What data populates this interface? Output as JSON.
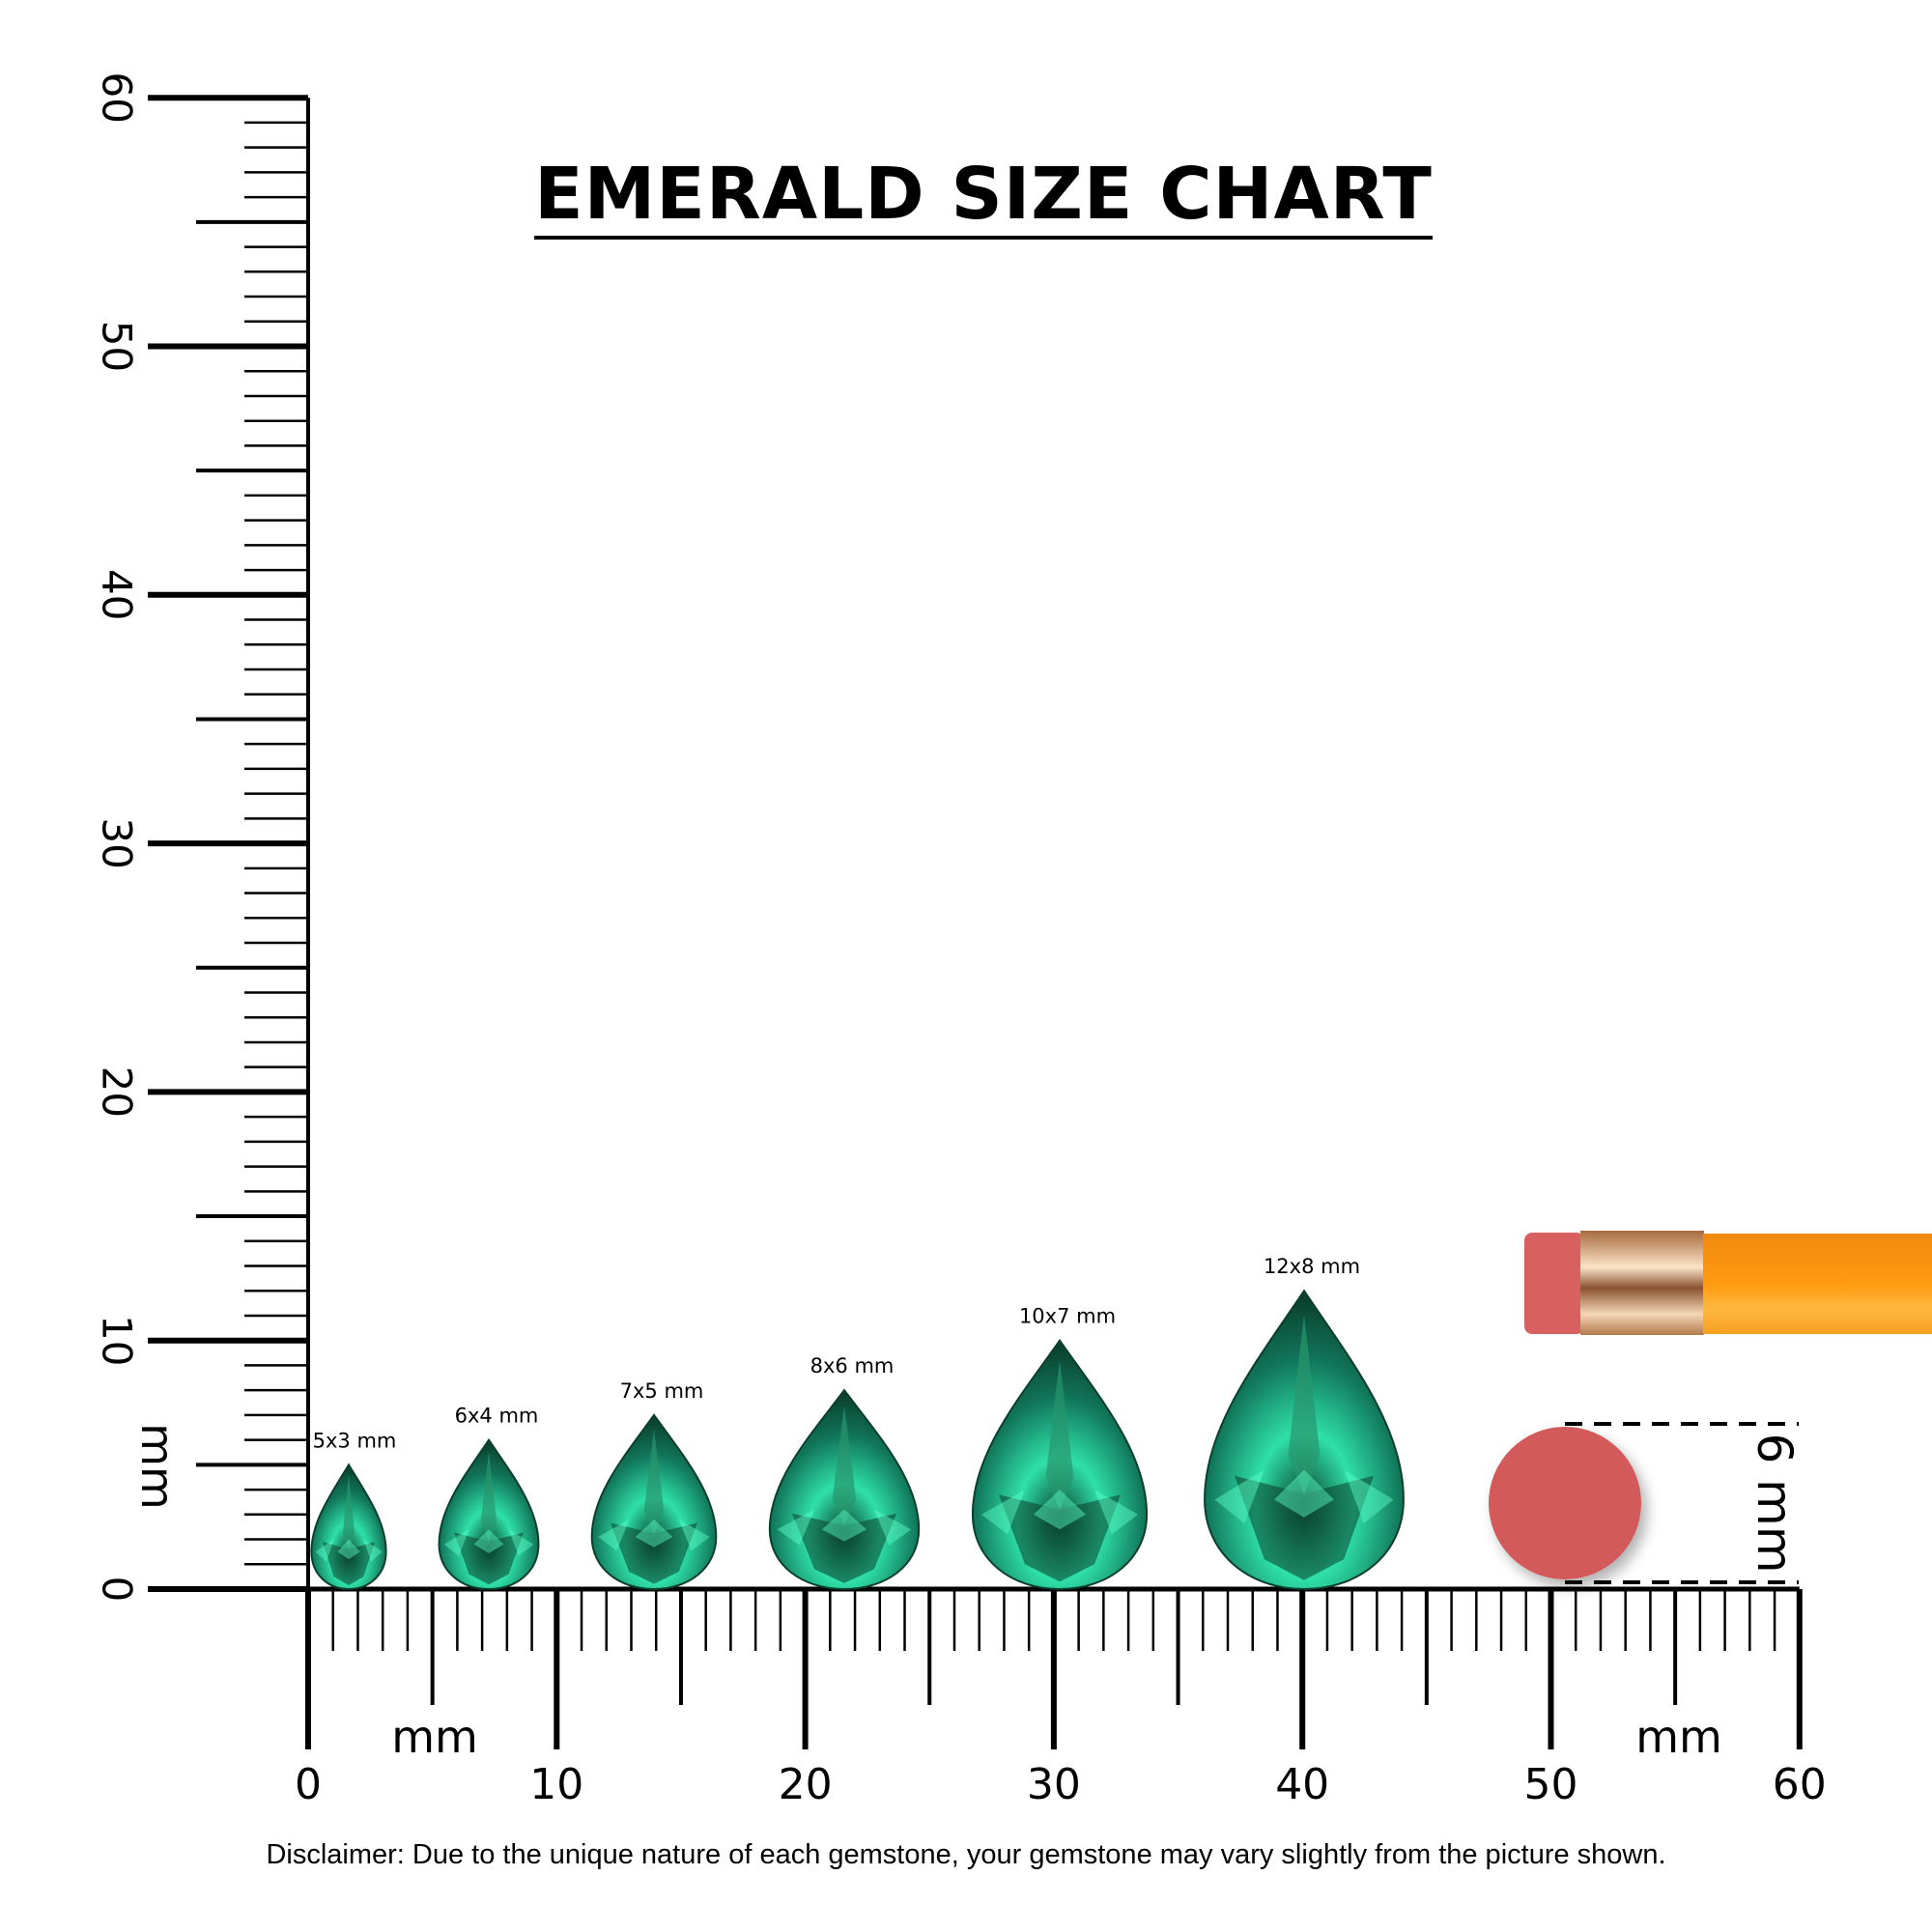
{
  "title": "EMERALD SIZE CHART",
  "disclaimer": "Disclaimer: Due to the unique nature of each gemstone, your gemstone may vary slightly from the picture shown.",
  "unit_label": "mm",
  "vertical_ruler": {
    "min": 0,
    "max": 60,
    "labels": [
      "0",
      "10",
      "20",
      "30",
      "40",
      "50",
      "60"
    ],
    "unit": "mm"
  },
  "horizontal_ruler": {
    "min": 0,
    "max": 60,
    "labels": [
      "0",
      "10",
      "20",
      "30",
      "40",
      "50",
      "60"
    ],
    "unit_left": "mm",
    "unit_right": "mm"
  },
  "gems": [
    {
      "label": "5x3 mm",
      "length_mm": 5,
      "width_mm": 3
    },
    {
      "label": "6x4 mm",
      "length_mm": 6,
      "width_mm": 4
    },
    {
      "label": "7x5 mm",
      "length_mm": 7,
      "width_mm": 5
    },
    {
      "label": "8x6 mm",
      "length_mm": 8,
      "width_mm": 6
    },
    {
      "label": "10x7 mm",
      "length_mm": 10,
      "width_mm": 7
    },
    {
      "label": "12x8 mm",
      "length_mm": 12,
      "width_mm": 8
    }
  ],
  "reference": {
    "label": "6 mm",
    "diameter_mm": 6,
    "object": "pencil eraser"
  },
  "colors": {
    "gem_dark": "#0a3f2c",
    "gem_mid": "#11765a",
    "gem_light": "#2fe0a8",
    "eraser": "#d35a5a",
    "pencil": "#ff9a10",
    "ferrule": "#d9a070"
  }
}
